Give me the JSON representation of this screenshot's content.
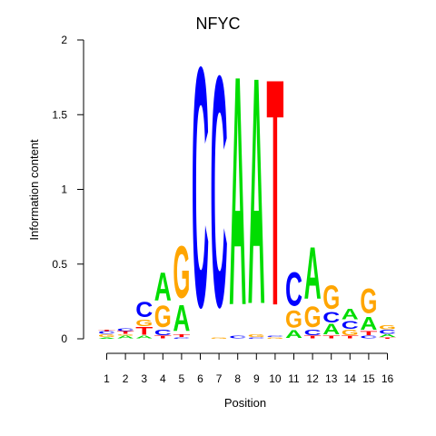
{
  "chart_data": {
    "type": "sequence-logo",
    "title": "NFYC",
    "xlabel": "Position",
    "ylabel": "Information content",
    "ylim": [
      0,
      2
    ],
    "yticks": [
      {
        "value": 0,
        "label": "0"
      },
      {
        "value": 0.5,
        "label": "0.5"
      },
      {
        "value": 1,
        "label": "1"
      },
      {
        "value": 1.5,
        "label": "1.5"
      },
      {
        "value": 2,
        "label": "2"
      }
    ],
    "positions": [
      {
        "label": "1",
        "stack": [
          [
            "A",
            0.01
          ],
          [
            "G",
            0.02
          ],
          [
            "C",
            0.02
          ],
          [
            "T",
            0.01
          ]
        ]
      },
      {
        "label": "2",
        "stack": [
          [
            "A",
            0.02
          ],
          [
            "G",
            0.01
          ],
          [
            "T",
            0.02
          ],
          [
            "C",
            0.02
          ]
        ]
      },
      {
        "label": "3",
        "stack": [
          [
            "A",
            0.02
          ],
          [
            "T",
            0.06
          ],
          [
            "G",
            0.05
          ],
          [
            "C",
            0.12
          ]
        ]
      },
      {
        "label": "4",
        "stack": [
          [
            "T",
            0.02
          ],
          [
            "C",
            0.04
          ],
          [
            "G",
            0.17
          ],
          [
            "A",
            0.22
          ]
        ]
      },
      {
        "label": "5",
        "stack": [
          [
            "C",
            0.01
          ],
          [
            "T",
            0.02
          ],
          [
            "A",
            0.2
          ],
          [
            "G",
            0.4
          ]
        ]
      },
      {
        "label": "6",
        "stack": [
          [
            "C",
            1.85
          ]
        ]
      },
      {
        "label": "7",
        "stack": [
          [
            "G",
            0.01
          ],
          [
            "C",
            1.78
          ]
        ]
      },
      {
        "label": "8",
        "stack": [
          [
            "C",
            0.02
          ],
          [
            "A",
            1.77
          ]
        ]
      },
      {
        "label": "9",
        "stack": [
          [
            "C",
            0.01
          ],
          [
            "G",
            0.02
          ],
          [
            "A",
            1.75
          ]
        ]
      },
      {
        "label": "10",
        "stack": [
          [
            "G",
            0.01
          ],
          [
            "C",
            0.01
          ],
          [
            "T",
            1.75
          ]
        ]
      },
      {
        "label": "11",
        "stack": [
          [
            "A",
            0.06
          ],
          [
            "G",
            0.13
          ],
          [
            "C",
            0.26
          ]
        ]
      },
      {
        "label": "12",
        "stack": [
          [
            "T",
            0.02
          ],
          [
            "C",
            0.04
          ],
          [
            "G",
            0.16
          ],
          [
            "A",
            0.4
          ]
        ]
      },
      {
        "label": "13",
        "stack": [
          [
            "T",
            0.02
          ],
          [
            "A",
            0.08
          ],
          [
            "C",
            0.08
          ],
          [
            "G",
            0.18
          ]
        ]
      },
      {
        "label": "14",
        "stack": [
          [
            "T",
            0.02
          ],
          [
            "G",
            0.04
          ],
          [
            "C",
            0.06
          ],
          [
            "A",
            0.08
          ]
        ]
      },
      {
        "label": "15",
        "stack": [
          [
            "C",
            0.02
          ],
          [
            "T",
            0.03
          ],
          [
            "A",
            0.1
          ],
          [
            "G",
            0.19
          ]
        ]
      },
      {
        "label": "16",
        "stack": [
          [
            "T",
            0.01
          ],
          [
            "A",
            0.02
          ],
          [
            "C",
            0.03
          ],
          [
            "G",
            0.03
          ]
        ]
      }
    ]
  },
  "colors": {
    "A": "#00dd00",
    "C": "#0000ff",
    "G": "#ffa500",
    "T": "#ff0000",
    "axis": "#000000",
    "background": "#ffffff"
  }
}
